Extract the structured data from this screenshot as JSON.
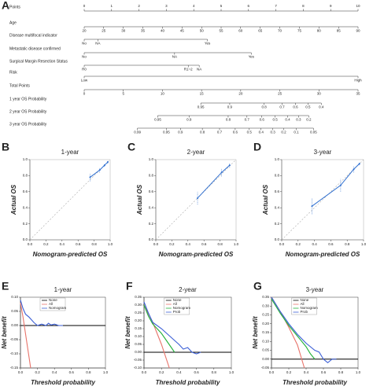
{
  "chart_data": [
    {
      "type": "nomogram",
      "panel": "A",
      "rows": [
        {
          "name": "Points",
          "xlim": [
            0,
            10
          ],
          "ticks": [
            0,
            1,
            2,
            3,
            4,
            5,
            6,
            7,
            8,
            9,
            10
          ]
        },
        {
          "name": "Age",
          "xlim": [
            0,
            10
          ],
          "ticks": [
            {
              "value": 0,
              "label": "20"
            },
            {
              "value": 0.71,
              "label": "25"
            },
            {
              "value": 1.43,
              "label": "30"
            },
            {
              "value": 2.14,
              "label": "35"
            },
            {
              "value": 2.86,
              "label": "40"
            },
            {
              "value": 3.57,
              "label": "45"
            },
            {
              "value": 4.29,
              "label": "50"
            },
            {
              "value": 5,
              "label": "55"
            },
            {
              "value": 5.71,
              "label": "60"
            },
            {
              "value": 6.43,
              "label": "65"
            },
            {
              "value": 7.14,
              "label": "70"
            },
            {
              "value": 7.86,
              "label": "75"
            },
            {
              "value": 8.57,
              "label": "80"
            },
            {
              "value": 9.29,
              "label": "85"
            },
            {
              "value": 10,
              "label": "90"
            }
          ]
        },
        {
          "name": "Disease multifocal indicator",
          "xlim": [
            0,
            10
          ],
          "ticks": [
            {
              "value": 0,
              "label": "No"
            },
            {
              "value": 0.5,
              "label": "NA"
            },
            {
              "value": 4.5,
              "label": "Yes"
            }
          ]
        },
        {
          "name": "Metastatic disease confirmed",
          "xlim": [
            0,
            10
          ],
          "ticks": [
            {
              "value": 0,
              "label": "No"
            },
            {
              "value": 3.3,
              "label": "NA"
            },
            {
              "value": 6.1,
              "label": "Yes"
            }
          ]
        },
        {
          "name": "Surgical Margin Resection Status",
          "xlim": [
            0,
            10
          ],
          "ticks": [
            {
              "value": 0,
              "label": "R0"
            },
            {
              "value": 3.8,
              "label": "R1~2"
            },
            {
              "value": 4.2,
              "label": "NA"
            }
          ]
        },
        {
          "name": "Risk",
          "xlim": [
            0,
            10
          ],
          "ticks": [
            {
              "value": 0,
              "label": "Low"
            },
            {
              "value": 10,
              "label": "High"
            }
          ]
        },
        {
          "name": "Total Points",
          "xlim": [
            0,
            35
          ],
          "ticks": [
            0,
            5,
            10,
            15,
            20,
            25,
            30,
            35
          ]
        },
        {
          "name": "1 year OS Probability",
          "xlim": [
            0,
            35
          ],
          "ticks": [
            {
              "value": 14.9,
              "label": "0.95"
            },
            {
              "value": 18.6,
              "label": "0.9"
            },
            {
              "value": 23,
              "label": "0.8"
            },
            {
              "value": 25.3,
              "label": "0.7"
            },
            {
              "value": 27,
              "label": "0.6"
            },
            {
              "value": 28.6,
              "label": "0.5"
            },
            {
              "value": 30.3,
              "label": "0.4"
            }
          ]
        },
        {
          "name": "2 year OS Probability",
          "xlim": [
            0,
            35
          ],
          "ticks": [
            {
              "value": 9.4,
              "label": "0.95"
            },
            {
              "value": 13.4,
              "label": "0.9"
            },
            {
              "value": 18.4,
              "label": "0.8"
            },
            {
              "value": 20.8,
              "label": "0.7"
            },
            {
              "value": 22.7,
              "label": "0.6"
            },
            {
              "value": 24.4,
              "label": "0.5"
            },
            {
              "value": 26,
              "label": "0.4"
            },
            {
              "value": 27.4,
              "label": "0.3"
            },
            {
              "value": 28.7,
              "label": "0.2"
            }
          ]
        },
        {
          "name": "3 year OS Probability",
          "xlim": [
            0,
            35
          ],
          "ticks": [
            {
              "value": 6.8,
              "label": "0.99"
            },
            {
              "value": 10.5,
              "label": "0.95"
            },
            {
              "value": 12.3,
              "label": "0.9"
            },
            {
              "value": 15.1,
              "label": "0.8"
            },
            {
              "value": 17.3,
              "label": "0.7"
            },
            {
              "value": 19.3,
              "label": "0.6"
            },
            {
              "value": 21.1,
              "label": "0.5"
            },
            {
              "value": 22.6,
              "label": "0.4"
            },
            {
              "value": 24.1,
              "label": "0.3"
            },
            {
              "value": 25.5,
              "label": "0.2"
            },
            {
              "value": 27.1,
              "label": "0.1"
            },
            {
              "value": 29.3,
              "label": "0.05"
            }
          ]
        }
      ]
    },
    {
      "type": "calibration",
      "panel": "B",
      "title": "1-year",
      "xlabel": "Nomogram-predicted OS",
      "ylabel": "Actual OS",
      "color": "#2f6fd0",
      "x": [
        0.75,
        0.87,
        0.93,
        0.97
      ],
      "values": [
        0.78,
        0.87,
        0.93,
        0.97
      ],
      "errors": [
        0.05,
        0.03,
        0.02,
        0.02
      ],
      "xlim": [
        0,
        1
      ],
      "ylim": [
        0,
        1
      ],
      "xticks": [
        {
          "value": 0,
          "label": "0.0"
        },
        0.2,
        0.4,
        0.6,
        0.8,
        {
          "value": 1,
          "label": "1.0"
        }
      ],
      "yticks": [
        {
          "value": 0,
          "label": "0.0"
        },
        0.2,
        0.4,
        0.6,
        0.8,
        {
          "value": 1,
          "label": "1.0"
        }
      ]
    },
    {
      "type": "calibration",
      "panel": "C",
      "title": "2-year",
      "xlabel": "Nomogram-predicted OS",
      "ylabel": "Actual OS",
      "color": "#2f6fd0",
      "x": [
        0.52,
        0.82,
        0.92
      ],
      "values": [
        0.52,
        0.84,
        0.93
      ],
      "errors": [
        0.08,
        0.05,
        0.03
      ],
      "xlim": [
        0,
        1
      ],
      "ylim": [
        0,
        1
      ],
      "xticks": [
        {
          "value": 0,
          "label": "0.0"
        },
        0.2,
        0.4,
        0.6,
        0.8,
        {
          "value": 1,
          "label": "1.0"
        }
      ],
      "yticks": [
        {
          "value": 0,
          "label": "0.0"
        },
        0.2,
        0.4,
        0.6,
        0.8,
        {
          "value": 1,
          "label": "1.0"
        }
      ]
    },
    {
      "type": "calibration",
      "panel": "D",
      "title": "3-year",
      "xlabel": "Nomogram-predicted OS",
      "ylabel": "Actual OS",
      "color": "#2f6fd0",
      "x": [
        0.37,
        0.72,
        0.88,
        0.95
      ],
      "values": [
        0.42,
        0.68,
        0.88,
        0.95
      ],
      "errors": [
        0.1,
        0.08,
        0.04,
        0.02
      ],
      "xlim": [
        0,
        1
      ],
      "ylim": [
        0,
        1
      ],
      "xticks": [
        {
          "value": 0,
          "label": "0.0"
        },
        0.2,
        0.4,
        0.6,
        0.8,
        {
          "value": 1,
          "label": "1.0"
        }
      ],
      "yticks": [
        {
          "value": 0,
          "label": "0.0"
        },
        0.2,
        0.4,
        0.6,
        0.8,
        {
          "value": 1,
          "label": "1.0"
        }
      ]
    },
    {
      "type": "decision-curve",
      "panel": "E",
      "title": "1-year",
      "xlabel": "Threshold probability",
      "ylabel": "Net benefit",
      "xlim": [
        0,
        1
      ],
      "ylim": [
        -0.15,
        0.1
      ],
      "xticks": [
        {
          "value": 0,
          "label": "0.0"
        },
        0.2,
        0.4,
        0.6,
        0.8,
        {
          "value": 1,
          "label": "1.0"
        }
      ],
      "yticks": [
        {
          "value": -0.15,
          "label": "-0.15"
        },
        {
          "value": -0.1,
          "label": "-0.10"
        },
        -0.05,
        {
          "value": 0,
          "label": "0.00"
        },
        0.05,
        {
          "value": 0.1,
          "label": "0.10"
        }
      ],
      "series": [
        {
          "name": "None",
          "color": "#000000",
          "x": [
            0,
            1
          ],
          "values": [
            0,
            0
          ]
        },
        {
          "name": "All",
          "color": "#e8736a",
          "x": [
            0,
            0.03,
            0.06,
            0.09,
            0.12
          ],
          "values": [
            0.08,
            0.03,
            -0.03,
            -0.09,
            -0.15
          ]
        },
        {
          "name": "Nomogram",
          "color": "#3b5fd6",
          "x": [
            0,
            0.03,
            0.06,
            0.1,
            0.13,
            0.16,
            0.2,
            0.25,
            0.3,
            0.33,
            0.36,
            0.4,
            0.45,
            0.5
          ],
          "values": [
            0.09,
            0.06,
            0.04,
            0.03,
            0.02,
            0.01,
            0,
            0.005,
            0,
            0.008,
            0.002,
            0.005,
            0,
            0
          ]
        }
      ]
    },
    {
      "type": "decision-curve",
      "panel": "F",
      "title": "2-year",
      "xlabel": "Threshold probability",
      "ylabel": "Net benefit",
      "xlim": [
        0,
        1
      ],
      "ylim": [
        -0.1,
        0.35
      ],
      "xticks": [
        {
          "value": 0,
          "label": "0.0"
        },
        0.2,
        0.4,
        0.6,
        0.8,
        {
          "value": 1,
          "label": "1.0"
        }
      ],
      "yticks": [
        {
          "value": -0.1,
          "label": "-0.10"
        },
        -0.05,
        {
          "value": 0,
          "label": "0.00"
        },
        0.05,
        {
          "value": 0.1,
          "label": "0.10"
        },
        0.15,
        {
          "value": 0.2,
          "label": "0.20"
        },
        0.25,
        {
          "value": 0.3,
          "label": "0.30"
        },
        0.35
      ],
      "series": [
        {
          "name": "None",
          "color": "#000000",
          "x": [
            0,
            1
          ],
          "values": [
            0,
            0
          ]
        },
        {
          "name": "All",
          "color": "#e8736a",
          "x": [
            0,
            0.1,
            0.2,
            0.29
          ],
          "values": [
            0.3,
            0.19,
            0.05,
            -0.1
          ]
        },
        {
          "name": "Nomogram",
          "color": "#22b03a",
          "x": [
            0,
            0.05,
            0.1,
            0.15,
            0.2,
            0.25,
            0.3,
            0.35
          ],
          "values": [
            0.3,
            0.23,
            0.18,
            0.15,
            0.12,
            0.08,
            0.04,
            0
          ]
        },
        {
          "name": "Prob",
          "color": "#3b5fd6",
          "x": [
            0,
            0.05,
            0.1,
            0.2,
            0.3,
            0.4,
            0.45,
            0.5,
            0.55,
            0.6,
            0.65
          ],
          "values": [
            0.32,
            0.25,
            0.19,
            0.15,
            0.1,
            0.05,
            0.02,
            0.03,
            0,
            -0.01,
            0
          ]
        }
      ]
    },
    {
      "type": "decision-curve",
      "panel": "G",
      "title": "3-year",
      "xlabel": "Threshold probability",
      "ylabel": "Net benefit",
      "xlim": [
        0,
        1
      ],
      "ylim": [
        -0.05,
        0.35
      ],
      "xticks": [
        {
          "value": 0,
          "label": "0.0"
        },
        0.2,
        0.4,
        0.6,
        0.8,
        {
          "value": 1,
          "label": "1.0"
        }
      ],
      "yticks": [
        -0.05,
        {
          "value": 0,
          "label": "0.00"
        },
        0.05,
        {
          "value": 0.1,
          "label": "0.10"
        },
        0.15,
        {
          "value": 0.2,
          "label": "0.20"
        },
        0.25,
        {
          "value": 0.3,
          "label": "0.30"
        },
        0.35
      ],
      "series": [
        {
          "name": "None",
          "color": "#000000",
          "x": [
            0,
            1
          ],
          "values": [
            0,
            0
          ]
        },
        {
          "name": "All",
          "color": "#e8736a",
          "x": [
            0,
            0.1,
            0.2,
            0.3,
            0.38
          ],
          "values": [
            0.35,
            0.27,
            0.18,
            0.08,
            -0.05
          ]
        },
        {
          "name": "Nomogram",
          "color": "#22b03a",
          "x": [
            0,
            0.1,
            0.2,
            0.3,
            0.4,
            0.45,
            0.5
          ],
          "values": [
            0.34,
            0.26,
            0.19,
            0.13,
            0.07,
            0.03,
            0
          ]
        },
        {
          "name": "Prob",
          "color": "#3b5fd6",
          "x": [
            0,
            0.1,
            0.2,
            0.3,
            0.4,
            0.5,
            0.55,
            0.6,
            0.65,
            0.7,
            0.75
          ],
          "values": [
            0.35,
            0.27,
            0.2,
            0.14,
            0.09,
            0.05,
            0.04,
            0,
            -0.02,
            0,
            0
          ]
        }
      ]
    }
  ]
}
